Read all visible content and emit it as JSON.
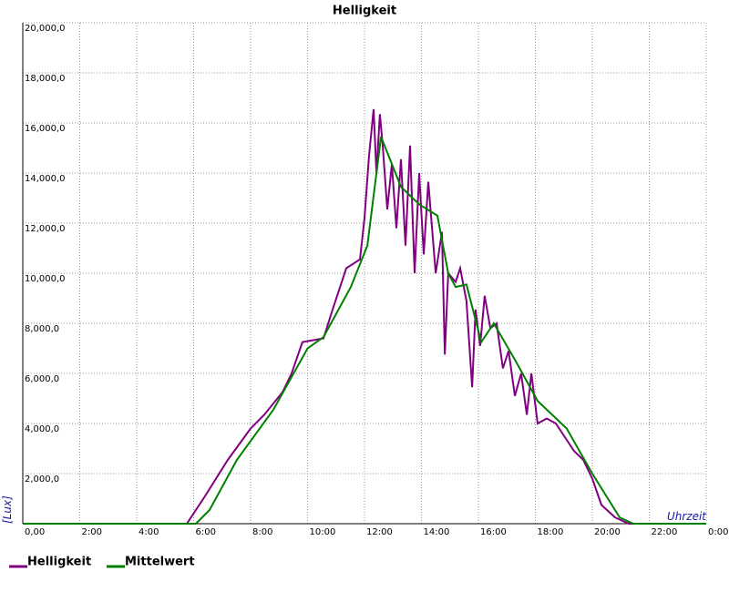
{
  "chart_data": {
    "type": "line",
    "title": "Helligkeit",
    "x_label": "Uhrzeit",
    "y_label": "[Lux]",
    "xlim": [
      0,
      24
    ],
    "ylim": [
      0,
      20000
    ],
    "grid": true,
    "legend": "bottom-left",
    "xticks": [
      {
        "value": 0,
        "label": "0,00"
      },
      {
        "value": 2,
        "label": "2:00"
      },
      {
        "value": 4,
        "label": "4:00"
      },
      {
        "value": 6,
        "label": "6:00"
      },
      {
        "value": 8,
        "label": "8:00"
      },
      {
        "value": 10,
        "label": "10:00"
      },
      {
        "value": 12,
        "label": "12:00"
      },
      {
        "value": 14,
        "label": "14:00"
      },
      {
        "value": 16,
        "label": "16:00"
      },
      {
        "value": 18,
        "label": "18:00"
      },
      {
        "value": 20,
        "label": "20:00"
      },
      {
        "value": 22,
        "label": "22:00"
      },
      {
        "value": 24,
        "label": "0:00"
      }
    ],
    "yticks": [
      0,
      {
        "value": 2000,
        "label": "2,000,0"
      },
      {
        "value": 4000,
        "label": "4,000,0"
      },
      {
        "value": 6000,
        "label": "6,000,0"
      },
      {
        "value": 8000,
        "label": "8,000,0"
      },
      {
        "value": 10000,
        "label": "10,000,0"
      },
      {
        "value": 12000,
        "label": "12,000,0"
      },
      {
        "value": 14000,
        "label": "14,000,0"
      },
      {
        "value": 16000,
        "label": "16,000,0"
      },
      {
        "value": 18000,
        "label": "18,000,0"
      },
      {
        "value": 20000,
        "label": "20,000,0"
      }
    ],
    "series": [
      {
        "name": "Helligkeit",
        "color": "#800080",
        "x": [
          0,
          5.76,
          6.4,
          7.2,
          8.0,
          8.48,
          9.12,
          9.44,
          9.82,
          10.56,
          10.88,
          11.36,
          11.84,
          12.0,
          12.16,
          12.32,
          12.42,
          12.54,
          12.64,
          12.8,
          12.96,
          13.12,
          13.28,
          13.44,
          13.6,
          13.76,
          13.92,
          14.08,
          14.24,
          14.5,
          14.72,
          14.82,
          14.94,
          15.2,
          15.36,
          15.58,
          15.78,
          15.9,
          16.06,
          16.22,
          16.42,
          16.64,
          16.86,
          17.06,
          17.28,
          17.5,
          17.7,
          17.86,
          18.08,
          18.4,
          18.72,
          19.04,
          19.36,
          19.68,
          20.0,
          20.32,
          20.8,
          21.28,
          24
        ],
        "values": [
          0,
          0,
          1100,
          2550,
          3800,
          4350,
          5250,
          6000,
          7250,
          7400,
          8550,
          10200,
          10550,
          12200,
          14700,
          16550,
          14000,
          16350,
          15100,
          12550,
          14350,
          11800,
          14550,
          11100,
          15100,
          10000,
          14000,
          10750,
          13650,
          10000,
          11650,
          6750,
          10000,
          9650,
          10200,
          8900,
          5450,
          8550,
          7100,
          9100,
          7800,
          8000,
          6200,
          6900,
          5100,
          6000,
          4350,
          6000,
          4000,
          4200,
          4000,
          3450,
          2900,
          2550,
          1800,
          750,
          250,
          0,
          0
        ]
      },
      {
        "name": "Mittelwert",
        "color": "#008000",
        "x": [
          0,
          6.08,
          6.56,
          7.52,
          8.8,
          10.0,
          10.56,
          11.52,
          12.1,
          12.58,
          13.28,
          13.92,
          14.56,
          14.94,
          15.2,
          15.58,
          16.1,
          16.54,
          17.28,
          18.08,
          19.1,
          20.0,
          20.96,
          21.44,
          24
        ],
        "values": [
          0,
          0,
          550,
          2550,
          4550,
          7000,
          7450,
          9450,
          11100,
          15450,
          13450,
          12750,
          12300,
          10000,
          9450,
          9550,
          7250,
          8000,
          6550,
          4900,
          3800,
          2000,
          250,
          0,
          0
        ]
      }
    ]
  }
}
